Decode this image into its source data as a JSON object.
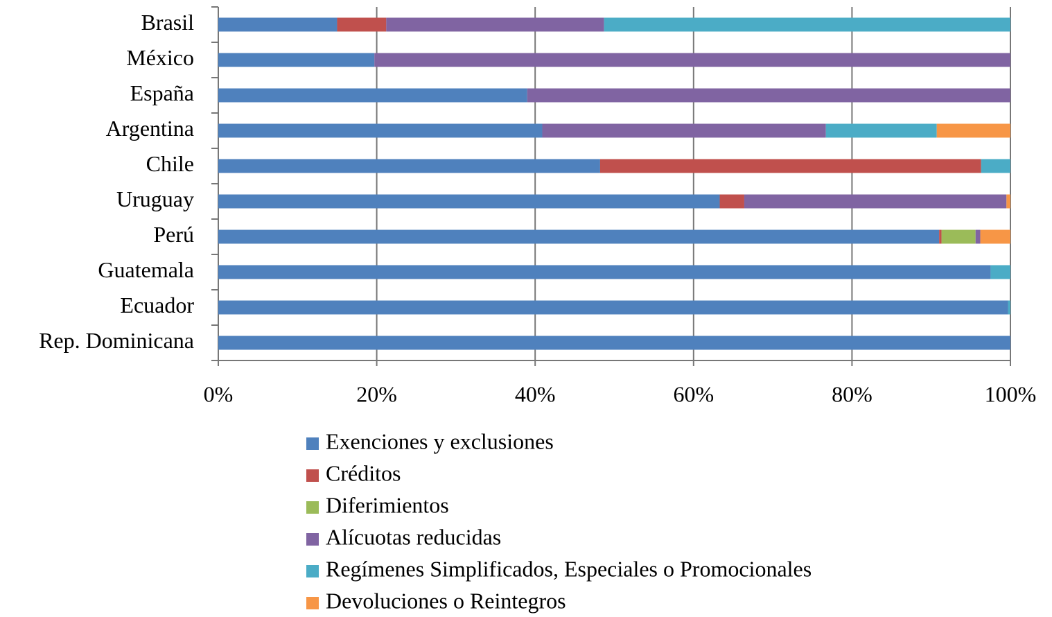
{
  "chart_data": {
    "type": "stacked_barh",
    "categories": [
      "Brasil",
      "México",
      "España",
      "Argentina",
      "Chile",
      "Uruguay",
      "Perú",
      "Guatemala",
      "Ecuador",
      "Rep. Dominicana"
    ],
    "series": [
      {
        "name": "Exenciones y exclusiones",
        "color": "#4f81bd",
        "values": [
          15.0,
          19.7,
          39.0,
          40.9,
          48.2,
          63.3,
          91.0,
          97.5,
          99.7,
          100
        ]
      },
      {
        "name": "Créditos",
        "color": "#c0504d",
        "values": [
          6.2,
          0,
          0,
          0,
          48.1,
          3.1,
          0.3,
          0,
          0,
          0
        ]
      },
      {
        "name": "Diferimientos",
        "color": "#9bbb59",
        "values": [
          0,
          0,
          0,
          0,
          0,
          0,
          4.3,
          0,
          0,
          0
        ]
      },
      {
        "name": "Alícuotas reducidas",
        "color": "#8064a2",
        "values": [
          27.5,
          80.3,
          61.0,
          35.8,
          0,
          33.1,
          0.6,
          0,
          0,
          0
        ]
      },
      {
        "name": "Regímenes Simplificados, Especiales o Promocionales",
        "color": "#4bacc6",
        "values": [
          51.3,
          0,
          0,
          14.0,
          3.7,
          0,
          0,
          2.5,
          0.3,
          0
        ]
      },
      {
        "name": "Devoluciones o Reintegros",
        "color": "#f79646",
        "values": [
          0,
          0,
          0,
          9.3,
          0,
          0.5,
          3.8,
          0,
          0,
          0
        ]
      }
    ],
    "xlim": [
      0,
      100
    ],
    "xticks": [
      {
        "value": 0,
        "label": "0%"
      },
      {
        "value": 20,
        "label": "20%"
      },
      {
        "value": 40,
        "label": "40%"
      },
      {
        "value": 60,
        "label": "60%"
      },
      {
        "value": 80,
        "label": "80%"
      },
      {
        "value": 100,
        "label": "100%"
      }
    ],
    "grid": true,
    "legend": "bottom"
  }
}
